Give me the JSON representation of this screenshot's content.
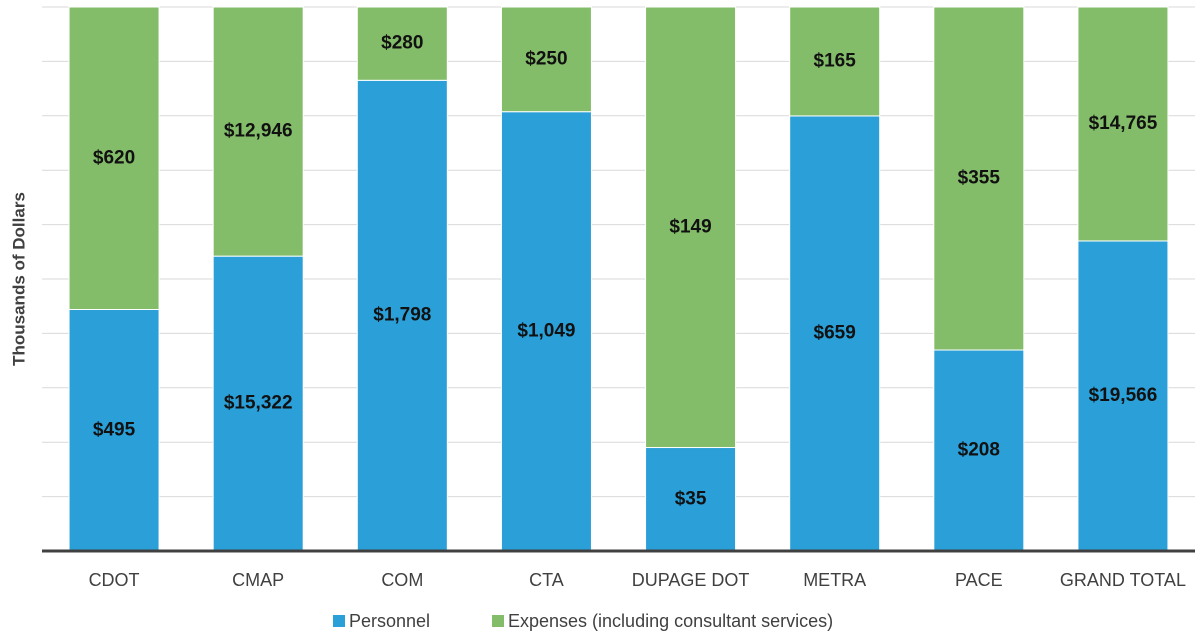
{
  "chart_data": {
    "type": "stacked_bar_percent",
    "y_label": "Thousands of Dollars",
    "categories": [
      "CDOT",
      "CMAP",
      "COM",
      "CTA",
      "DUPAGE DOT",
      "METRA",
      "PACE",
      "GRAND TOTAL"
    ],
    "series": [
      {
        "name": "Personnel",
        "color": "#2a9fd8",
        "values": [
          495,
          15322,
          1798,
          1049,
          35,
          659,
          208,
          19566
        ],
        "value_labels": [
          "$495",
          "$15,322",
          "$1,798",
          "$1,049",
          "$35",
          "$659",
          "$208",
          "$19,566"
        ]
      },
      {
        "name": "Expenses (including consultant services)",
        "color": "#84bd6a",
        "values": [
          620,
          12946,
          280,
          250,
          149,
          165,
          355,
          14765
        ],
        "value_labels": [
          "$620",
          "$12,946",
          "$280",
          "$250",
          "$149",
          "$165",
          "$355",
          "$14,765"
        ]
      }
    ],
    "ylim": [
      0,
      100
    ],
    "yticks": [
      0,
      10,
      20,
      30,
      40,
      50,
      60,
      70,
      80,
      90,
      100
    ],
    "grid": true,
    "legend": "bottom"
  }
}
